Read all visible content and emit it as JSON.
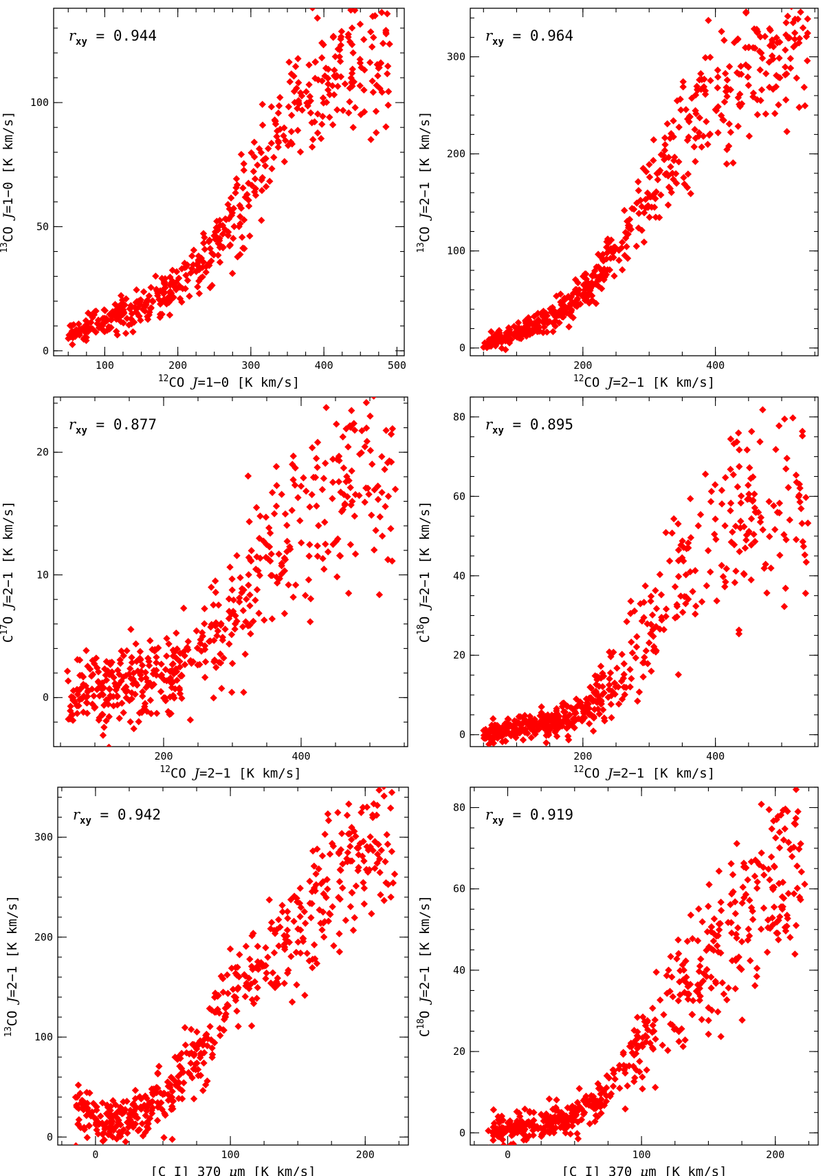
{
  "figure": {
    "description_label": "Six-panel scatter comparison of CO isotopologue and [C I] integrated intensities"
  },
  "colors": {
    "marker": "#ff0000",
    "frame": "#000000"
  },
  "chart_data": [
    {
      "type": "scatter",
      "id": "p1",
      "annotation": "r_xy = 0.944",
      "r_label": "0.944",
      "xlabel": {
        "sup": "12",
        "mol": "CO ",
        "line": "J",
        "rest": "=1−0 [K km/s]"
      },
      "ylabel": {
        "sup": "13",
        "mol": "CO ",
        "line": "J",
        "rest": "=1−0 [K km/s]"
      },
      "xlim": [
        30,
        510
      ],
      "ylim": [
        -2,
        138
      ],
      "xticks": [
        100,
        200,
        300,
        400,
        500
      ],
      "yticks": [
        0,
        50,
        100
      ],
      "xminor": 25,
      "yminor": 10,
      "x_tick_labels": [
        "100",
        "200",
        "300",
        "400",
        "500"
      ],
      "y_tick_labels": [
        "0",
        "50",
        "100"
      ],
      "n_points": 520,
      "trend": [
        [
          50,
          6
        ],
        [
          100,
          12
        ],
        [
          150,
          19
        ],
        [
          200,
          26
        ],
        [
          250,
          40
        ],
        [
          300,
          70
        ],
        [
          350,
          92
        ],
        [
          400,
          108
        ],
        [
          480,
          118
        ]
      ],
      "spread": 0.11,
      "abs_spread": 1.5,
      "x_dist": [
        [
          50,
          260,
          0.55
        ],
        [
          260,
          490,
          0.45
        ]
      ]
    },
    {
      "type": "scatter",
      "id": "p2",
      "annotation": "r_xy = 0.964",
      "r_label": "0.964",
      "xlabel": {
        "sup": "12",
        "mol": "CO ",
        "line": "J",
        "rest": "=2−1 [K km/s]"
      },
      "ylabel": {
        "sup": "13",
        "mol": "CO ",
        "line": "J",
        "rest": "=2−1 [K km/s]"
      },
      "xlim": [
        30,
        555
      ],
      "ylim": [
        -8,
        350
      ],
      "xticks": [
        200,
        400
      ],
      "yticks": [
        0,
        100,
        200,
        300
      ],
      "xminor": 50,
      "yminor": 20,
      "x_tick_labels": [
        "200",
        "400"
      ],
      "y_tick_labels": [
        "0",
        "100",
        "200",
        "300"
      ],
      "n_points": 560,
      "trend": [
        [
          50,
          5
        ],
        [
          100,
          15
        ],
        [
          150,
          32
        ],
        [
          200,
          55
        ],
        [
          250,
          100
        ],
        [
          300,
          160
        ],
        [
          350,
          220
        ],
        [
          400,
          260
        ],
        [
          450,
          285
        ],
        [
          530,
          310
        ]
      ],
      "spread": 0.12,
      "abs_spread": 3,
      "x_dist": [
        [
          50,
          240,
          0.5
        ],
        [
          240,
          540,
          0.5
        ]
      ]
    },
    {
      "type": "scatter",
      "id": "p3",
      "annotation": "r_xy = 0.877",
      "r_label": "0.877",
      "xlabel": {
        "sup": "12",
        "mol": "CO ",
        "line": "J",
        "rest": "=2−1 [K km/s]"
      },
      "ylabel": {
        "pre": "C",
        "sup": "17",
        "mol": "O ",
        "line": "J",
        "rest": "=2−1 [K km/s]"
      },
      "xlim": [
        40,
        555
      ],
      "ylim": [
        -4,
        24.5
      ],
      "xticks": [
        200,
        400
      ],
      "yticks": [
        0,
        10,
        20
      ],
      "xminor": 50,
      "yminor": 2,
      "x_tick_labels": [
        "200",
        "400"
      ],
      "y_tick_labels": [
        "0",
        "10",
        "20"
      ],
      "n_points": 520,
      "trend": [
        [
          60,
          0
        ],
        [
          100,
          0.5
        ],
        [
          150,
          1
        ],
        [
          200,
          1.5
        ],
        [
          250,
          3.5
        ],
        [
          300,
          7
        ],
        [
          350,
          11
        ],
        [
          400,
          14.5
        ],
        [
          450,
          17
        ],
        [
          530,
          18
        ]
      ],
      "spread": 0.18,
      "abs_spread": 1.5,
      "x_dist": [
        [
          60,
          240,
          0.5
        ],
        [
          240,
          540,
          0.5
        ]
      ]
    },
    {
      "type": "scatter",
      "id": "p4",
      "annotation": "r_xy = 0.895",
      "r_label": "0.895",
      "xlabel": {
        "sup": "12",
        "mol": "CO ",
        "line": "J",
        "rest": "=2−1 [K km/s]"
      },
      "ylabel": {
        "pre": "C",
        "sup": "18",
        "mol": "O ",
        "line": "J",
        "rest": "=2−1 [K km/s]"
      },
      "xlim": [
        30,
        555
      ],
      "ylim": [
        -3,
        85
      ],
      "xticks": [
        200,
        400
      ],
      "yticks": [
        0,
        20,
        40,
        60,
        80
      ],
      "xminor": 50,
      "yminor": 5,
      "x_tick_labels": [
        "200",
        "400"
      ],
      "y_tick_labels": [
        "0",
        "20",
        "40",
        "60",
        "80"
      ],
      "n_points": 540,
      "trend": [
        [
          50,
          0
        ],
        [
          100,
          1.5
        ],
        [
          150,
          3
        ],
        [
          200,
          6
        ],
        [
          250,
          15
        ],
        [
          300,
          28
        ],
        [
          350,
          40
        ],
        [
          400,
          50
        ],
        [
          450,
          56
        ],
        [
          530,
          60
        ]
      ],
      "spread": 0.22,
      "abs_spread": 1.2,
      "x_dist": [
        [
          50,
          240,
          0.55
        ],
        [
          240,
          540,
          0.45
        ]
      ]
    },
    {
      "type": "scatter",
      "id": "p5",
      "annotation": "r_xy = 0.942",
      "r_label": "0.942",
      "xlabel": {
        "plain": "[C I] 370 ",
        "mu": "μ",
        "rest": "m [K km/s]"
      },
      "ylabel": {
        "sup": "13",
        "mol": "CO ",
        "line": "J",
        "rest": "=2−1 [K km/s]"
      },
      "xlim": [
        -28,
        232
      ],
      "ylim": [
        -8,
        350
      ],
      "xticks": [
        0,
        100,
        200
      ],
      "yticks": [
        0,
        100,
        200,
        300
      ],
      "xminor": 25,
      "yminor": 20,
      "x_tick_labels": [
        "0",
        "100",
        "200"
      ],
      "y_tick_labels": [
        "0",
        "100",
        "200",
        "300"
      ],
      "n_points": 540,
      "trend": [
        [
          -15,
          30
        ],
        [
          0,
          15
        ],
        [
          20,
          18
        ],
        [
          40,
          30
        ],
        [
          60,
          50
        ],
        [
          80,
          90
        ],
        [
          100,
          145
        ],
        [
          120,
          175
        ],
        [
          140,
          200
        ],
        [
          160,
          235
        ],
        [
          180,
          265
        ],
        [
          200,
          280
        ],
        [
          220,
          285
        ]
      ],
      "spread": 0.1,
      "abs_spread": 10,
      "x_dist": [
        [
          -15,
          70,
          0.45
        ],
        [
          70,
          222,
          0.55
        ]
      ]
    },
    {
      "type": "scatter",
      "id": "p6",
      "annotation": "r_xy = 0.919",
      "r_label": "0.919",
      "xlabel": {
        "plain": "[C I] 370 ",
        "mu": "μ",
        "rest": "m [K km/s]"
      },
      "ylabel": {
        "pre": "C",
        "sup": "18",
        "mol": "O ",
        "line": "J",
        "rest": "=2−1 [K km/s]"
      },
      "xlim": [
        -28,
        232
      ],
      "ylim": [
        -3,
        85
      ],
      "xticks": [
        0,
        100,
        200
      ],
      "yticks": [
        0,
        20,
        40,
        60,
        80
      ],
      "xminor": 25,
      "yminor": 5,
      "x_tick_labels": [
        "0",
        "100",
        "200"
      ],
      "y_tick_labels": [
        "0",
        "20",
        "40",
        "60",
        "80"
      ],
      "n_points": 540,
      "trend": [
        [
          -15,
          1
        ],
        [
          0,
          1
        ],
        [
          20,
          2
        ],
        [
          40,
          3
        ],
        [
          60,
          5
        ],
        [
          80,
          14
        ],
        [
          100,
          23
        ],
        [
          120,
          31
        ],
        [
          140,
          38
        ],
        [
          160,
          45
        ],
        [
          180,
          56
        ],
        [
          200,
          62
        ],
        [
          220,
          65
        ]
      ],
      "spread": 0.16,
      "abs_spread": 1.6,
      "x_dist": [
        [
          -15,
          75,
          0.45
        ],
        [
          75,
          222,
          0.55
        ]
      ]
    }
  ]
}
